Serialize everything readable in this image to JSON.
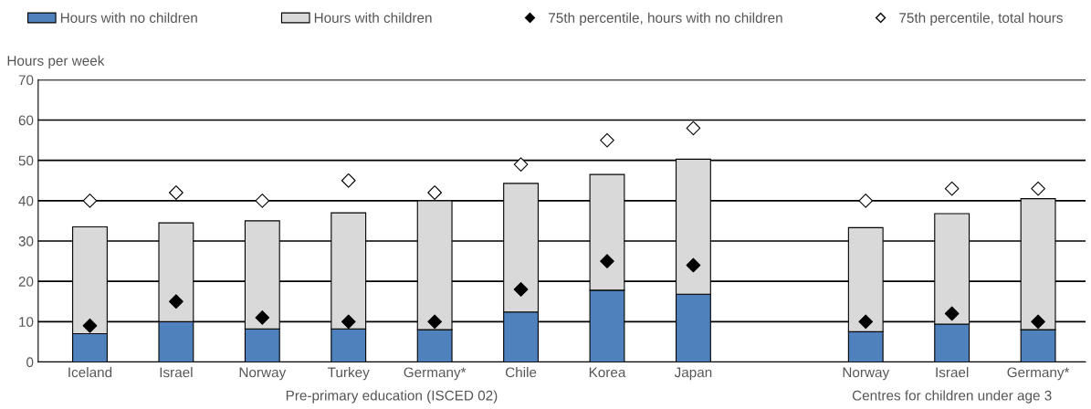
{
  "chart_data": {
    "type": "bar",
    "stacked": true,
    "ylabel": "Hours per week",
    "categories": [
      "Iceland",
      "Israel",
      "Norway",
      "Turkey",
      "Germany*",
      "Chile",
      "Korea",
      "Japan",
      null,
      "Norway",
      "Israel",
      "Germany*"
    ],
    "series": [
      {
        "name": "Hours with no children",
        "color": "#4f81bd",
        "values": [
          7,
          10,
          8.2,
          8.2,
          8,
          12.4,
          17.8,
          16.8,
          null,
          7.5,
          9.4,
          8
        ]
      },
      {
        "name": "Hours with children",
        "color": "#d9d9d9",
        "values": [
          26.5,
          24.5,
          26.8,
          28.8,
          32,
          31.9,
          28.7,
          33.5,
          null,
          25.8,
          27.4,
          32.5
        ]
      },
      {
        "name": "75th percentile, hours with no children",
        "type": "scatter",
        "marker": "diamond",
        "color": "#000000",
        "values": [
          9,
          15,
          11,
          10,
          10,
          18,
          25,
          24,
          null,
          10,
          12,
          10
        ]
      },
      {
        "name": "75th percentile, total hours",
        "type": "scatter",
        "marker": "diamond",
        "color": "#ffffff",
        "values": [
          40,
          42,
          40,
          45,
          42,
          49,
          55,
          58,
          null,
          40,
          43,
          43
        ]
      }
    ],
    "ylim": [
      0,
      70
    ],
    "yticks": [
      0,
      10,
      20,
      30,
      40,
      50,
      60,
      70
    ],
    "grid": "y",
    "legend": "top",
    "annotations": [
      "Pre-primary education (ISCED 02)",
      "Centres for children under age 3"
    ]
  }
}
